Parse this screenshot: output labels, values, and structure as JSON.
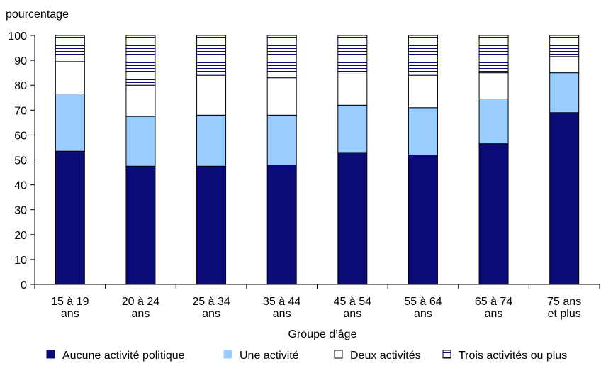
{
  "chart_data": {
    "type": "bar",
    "stacked": true,
    "ylabel": "pourcentage",
    "xlabel": "Groupe d’âge",
    "ylim": [
      0,
      100
    ],
    "yticks": [
      "0",
      "10",
      "20",
      "30",
      "40",
      "50",
      "60",
      "70",
      "80",
      "90",
      "100"
    ],
    "categories": [
      [
        "15 à 19",
        "ans"
      ],
      [
        "20 à 24",
        "ans"
      ],
      [
        "25 à 34",
        "ans"
      ],
      [
        "35 à 44",
        "ans"
      ],
      [
        "45 à 54",
        "ans"
      ],
      [
        "55 à 64",
        "ans"
      ],
      [
        "65 à 74",
        "ans"
      ],
      [
        "75 ans",
        "et plus"
      ]
    ],
    "series": [
      {
        "name": "Aucune activité politique",
        "color": "#0a0a78",
        "pattern": "solid",
        "values": [
          53.5,
          47.5,
          47.5,
          48,
          53,
          52,
          56.5,
          69
        ]
      },
      {
        "name": "Une activité",
        "color": "#99ccff",
        "pattern": "solid",
        "values": [
          23,
          20,
          20.5,
          20,
          19,
          19,
          18,
          16
        ]
      },
      {
        "name": "Deux activités",
        "color": "#ffffff",
        "pattern": "solid",
        "values": [
          13,
          12.5,
          16,
          15,
          12.5,
          13,
          10.5,
          6.5
        ]
      },
      {
        "name": "Trois activités ou plus",
        "color": "#ffffff",
        "pattern": "horizontal-lines",
        "values": [
          10.5,
          20,
          16,
          17,
          15.5,
          16,
          15,
          8.5
        ]
      }
    ],
    "legend_position": "bottom",
    "grid": false
  }
}
